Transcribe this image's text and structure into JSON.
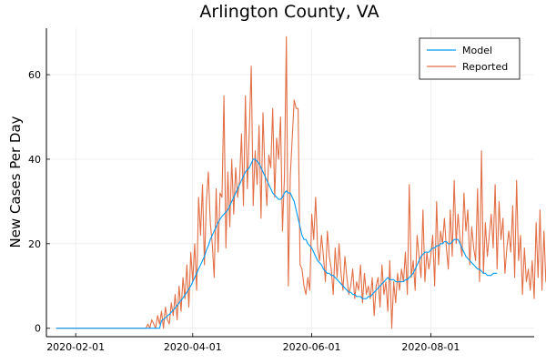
{
  "chart_data": {
    "type": "line",
    "title": "Arlington County, VA",
    "xlabel": "",
    "ylabel": "New Cases Per Day",
    "x_ticks": [
      "2020-02-01",
      "2020-04-01",
      "2020-06-01",
      "2020-08-01"
    ],
    "y_ticks": [
      0,
      20,
      40,
      60
    ],
    "xlim": [
      "2020-01-17",
      "2020-09-23"
    ],
    "ylim": [
      -2,
      71
    ],
    "grid": true,
    "legend_position": "top-right",
    "x_start": "2020-01-22",
    "x_step_days": 1,
    "series": [
      {
        "name": "Model",
        "color": "#009AFA",
        "values": [
          0,
          0,
          0,
          0,
          0,
          0,
          0,
          0,
          0,
          0,
          0,
          0,
          0,
          0,
          0,
          0,
          0,
          0,
          0,
          0,
          0,
          0,
          0,
          0,
          0,
          0,
          0,
          0,
          0,
          0,
          0,
          0,
          0,
          0,
          0,
          0,
          0,
          0,
          0,
          0,
          0,
          0,
          0,
          0,
          0,
          0,
          0,
          0,
          0,
          0,
          0,
          0,
          0,
          0,
          1.8,
          2.1,
          2.5,
          2.9,
          3.3,
          3.8,
          4.3,
          4.8,
          5.4,
          6.0,
          6.6,
          7.2,
          7.9,
          8.5,
          9.3,
          10,
          11,
          12,
          13,
          14,
          15,
          16,
          17,
          18.5,
          19.5,
          21,
          22,
          23,
          24,
          25,
          25.8,
          26.5,
          27,
          27.5,
          28,
          29,
          30,
          31,
          32,
          33,
          34,
          35,
          36,
          37,
          37.5,
          38,
          39,
          40,
          40,
          39.5,
          39,
          38,
          37,
          36,
          35,
          34,
          33,
          32,
          31.5,
          31,
          30.5,
          30.5,
          31,
          32,
          32.5,
          32,
          32,
          31,
          30,
          28,
          26,
          24,
          22,
          21,
          21,
          20,
          19.5,
          19,
          18,
          17,
          16,
          15.5,
          15,
          14,
          13.5,
          13,
          13,
          12.5,
          12.5,
          12,
          11.5,
          11,
          10.5,
          10,
          9.5,
          9,
          8.5,
          8.5,
          8,
          8,
          7.5,
          7.5,
          7.5,
          7,
          7,
          7,
          7.5,
          7.5,
          8,
          8.5,
          9,
          9.5,
          10,
          10.5,
          11,
          11.5,
          12,
          11.5,
          11.5,
          11.5,
          11,
          11,
          11,
          11,
          11,
          11.5,
          11.5,
          12,
          12.5,
          13,
          14,
          15,
          16,
          17,
          17.5,
          18,
          18,
          18,
          18.5,
          19,
          19,
          19.5,
          19.5,
          20,
          20,
          20.5,
          20.5,
          20,
          20,
          20.5,
          21,
          21,
          21,
          20,
          19,
          18,
          17,
          16.5,
          16,
          15.5,
          15,
          14.5,
          14,
          14,
          13.5,
          13,
          13,
          12.5,
          12.5,
          12.5,
          13,
          13,
          13
        ]
      },
      {
        "name": "Reported",
        "color": "#E26F46",
        "values": [
          0,
          0,
          0,
          0,
          0,
          0,
          0,
          0,
          0,
          0,
          0,
          0,
          0,
          0,
          0,
          0,
          0,
          0,
          0,
          0,
          0,
          0,
          0,
          0,
          0,
          0,
          0,
          0,
          0,
          0,
          0,
          0,
          0,
          0,
          0,
          0,
          0,
          0,
          0,
          0,
          0,
          0,
          0,
          0,
          0,
          0,
          0,
          1,
          0,
          2,
          1,
          0,
          3,
          1,
          4,
          0,
          5,
          2,
          1,
          6,
          3,
          8,
          2,
          10,
          4,
          12,
          7,
          15,
          5,
          18,
          11,
          20,
          9,
          31,
          22,
          34,
          15,
          30,
          37,
          25,
          20,
          12,
          33,
          18,
          32,
          31,
          55,
          19,
          37,
          24,
          40,
          27,
          38,
          31,
          35,
          46,
          29,
          55,
          33,
          47,
          62,
          29,
          42,
          34,
          48,
          26,
          51,
          37,
          29,
          41,
          38,
          52,
          31,
          45,
          40,
          50,
          23,
          36,
          69,
          10,
          36,
          45,
          54,
          52,
          52,
          15,
          14,
          10,
          8,
          12,
          9,
          27,
          21,
          31,
          19,
          16,
          22,
          17,
          11,
          23,
          17,
          14,
          8,
          19,
          12,
          20,
          13,
          9,
          17,
          12,
          8,
          10,
          14,
          7,
          11,
          9,
          15,
          6,
          13,
          8,
          10,
          7,
          12,
          3,
          10,
          12,
          5,
          15,
          8,
          11,
          4,
          16,
          0,
          11,
          6,
          13,
          9,
          14,
          11,
          18,
          8,
          34,
          12,
          16,
          9,
          22,
          17,
          12,
          28,
          11,
          18,
          14,
          17,
          22,
          10,
          30,
          15,
          23,
          20,
          26,
          19,
          14,
          28,
          17,
          35,
          20,
          27,
          21,
          17,
          32,
          23,
          28,
          15,
          24,
          19,
          16,
          33,
          11,
          42,
          13,
          25,
          17,
          22,
          27,
          19,
          34,
          14,
          30,
          21,
          26,
          13,
          19,
          23,
          18,
          29,
          12,
          35,
          16,
          22,
          8,
          19,
          11,
          14,
          9,
          16,
          7,
          25,
          12,
          28,
          9,
          23,
          11,
          21,
          15
        ]
      }
    ]
  }
}
